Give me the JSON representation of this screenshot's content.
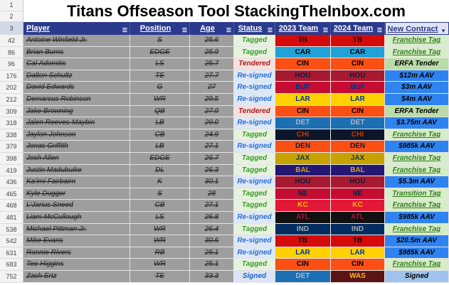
{
  "title": "Titans Offseason Tool StackingTheInbox.com",
  "title_rows": [
    "1",
    "2"
  ],
  "header_row": "3",
  "headers": {
    "player": "Player",
    "position": "Position",
    "age": "Age",
    "status": "Status",
    "team2023": "2023 Team",
    "team2024": "2024 Team",
    "contract": "New Contract"
  },
  "colors": {
    "header_bg": "#2b3a8c",
    "strike_cell_bg": "#9e9e9e",
    "tagged_text": "#3a9a2a",
    "tagged_bg": "#e7f2de",
    "resigned_text": "#2c6ed6",
    "resigned_bg": "#dde8f7",
    "tendered_text": "#a51c1c",
    "tendered_bg": "#f6e0dd",
    "signed_text": "#1f5fbf",
    "signed_bg": "#dbe5f5",
    "contract_tag_bg": "#d7ecc8",
    "contract_tag_text": "#2f7d1c",
    "contract_money_bg": "#2f83f0",
    "contract_money_text": "#000000",
    "contract_tender_bg": "#b9dca8",
    "contract_signed_bg": "#9fc3ec"
  },
  "rows": [
    {
      "num": "42",
      "player": "Antoine Winfield Jr.",
      "pos": "S",
      "age": "25.6",
      "status": "Tagged",
      "t23": "TB",
      "t24": "TB",
      "team_style": "tb",
      "contract": "Franchise Tag",
      "ctype": "tag"
    },
    {
      "num": "86",
      "player": "Brian Burns",
      "pos": "EDGE",
      "age": "25.9",
      "status": "Tagged",
      "t23": "CAR",
      "t24": "CAR",
      "team_style": "car",
      "contract": "Franchise Tag",
      "ctype": "tag"
    },
    {
      "num": "96",
      "player": "Cal Adomitis",
      "pos": "LS",
      "age": "25.7",
      "status": "Tendered",
      "t23": "CIN",
      "t24": "CIN",
      "team_style": "cin",
      "contract": "ERFA Tender",
      "ctype": "tender"
    },
    {
      "num": "176",
      "player": "Dalton Schultz",
      "pos": "TE",
      "age": "27.7",
      "status": "Re-signed",
      "t23": "HOU",
      "t24": "HOU",
      "team_style": "hou",
      "contract": "$12m AAV",
      "ctype": "money"
    },
    {
      "num": "202",
      "player": "David Edwards",
      "pos": "G",
      "age": "27",
      "status": "Re-signed",
      "t23": "BUF",
      "t24": "BUF",
      "team_style": "buf",
      "contract": "$3m AAV",
      "ctype": "money"
    },
    {
      "num": "212",
      "player": "Demarcus Robinson",
      "pos": "WR",
      "age": "29.5",
      "status": "Re-signed",
      "t23": "LAR",
      "t24": "LAR",
      "team_style": "lar",
      "contract": "$4m AAV",
      "ctype": "money"
    },
    {
      "num": "309",
      "player": "Jake Browning",
      "pos": "QB",
      "age": "27.9",
      "status": "Tendered",
      "t23": "CIN",
      "t24": "CIN",
      "team_style": "cin",
      "contract": "ERFA Tender",
      "ctype": "tender"
    },
    {
      "num": "318",
      "player": "Jalen Reeves-Maybin",
      "pos": "LB",
      "age": "29.0",
      "status": "Re-signed",
      "t23": "DET",
      "t24": "DET",
      "team_style": "det",
      "contract": "$3.75m AAV",
      "ctype": "money"
    },
    {
      "num": "338",
      "player": "Jaylon Johnson",
      "pos": "CB",
      "age": "24.9",
      "status": "Tagged",
      "t23": "CHI",
      "t24": "CHI",
      "team_style": "chi",
      "contract": "Franchise Tag",
      "ctype": "tag"
    },
    {
      "num": "379",
      "player": "Jonas Griffith",
      "pos": "LB",
      "age": "27.1",
      "status": "Re-signed",
      "t23": "DEN",
      "t24": "DEN",
      "team_style": "den",
      "contract": "$985k AAV",
      "ctype": "money"
    },
    {
      "num": "398",
      "player": "Josh Allen",
      "pos": "EDGE",
      "age": "26.7",
      "status": "Tagged",
      "t23": "JAX",
      "t24": "JAX",
      "team_style": "jax",
      "contract": "Franchise Tag",
      "ctype": "tag"
    },
    {
      "num": "419",
      "player": "Justin Madubuike",
      "pos": "DL",
      "age": "26.3",
      "status": "Tagged",
      "t23": "BAL",
      "t24": "BAL",
      "team_style": "bal",
      "contract": "Franchise Tag",
      "ctype": "tag"
    },
    {
      "num": "436",
      "player": "Ka'imi Fairbairn",
      "pos": "K",
      "age": "30.1",
      "status": "Re-signed",
      "t23": "HOU",
      "t24": "HOU",
      "team_style": "hou",
      "contract": "$5.3m AAV",
      "ctype": "money"
    },
    {
      "num": "465",
      "player": "Kyle Dugger",
      "pos": "S",
      "age": "28",
      "status": "Tagged",
      "t23": "NE",
      "t24": "NE",
      "team_style": "ne",
      "contract": "Transition Tag",
      "ctype": "tag"
    },
    {
      "num": "468",
      "player": "L'Jarius Sneed",
      "pos": "CB",
      "age": "27.1",
      "status": "Tagged",
      "t23": "KC",
      "t24": "KC",
      "team_style": "kc",
      "contract": "Franchise Tag",
      "ctype": "tag"
    },
    {
      "num": "481",
      "player": "Liam McCullough",
      "pos": "LS",
      "age": "26.8",
      "status": "Re-signed",
      "t23": "ATL",
      "t24": "ATL",
      "team_style": "atl",
      "contract": "$985k AAV",
      "ctype": "money"
    },
    {
      "num": "538",
      "player": "Michael Pittman Jr.",
      "pos": "WR",
      "age": "26.4",
      "status": "Tagged",
      "t23": "IND",
      "t24": "IND",
      "team_style": "ind",
      "contract": "Franchise Tag",
      "ctype": "tag"
    },
    {
      "num": "542",
      "player": "Mike Evans",
      "pos": "WR",
      "age": "30.6",
      "status": "Re-signed",
      "t23": "TB",
      "t24": "TB",
      "team_style": "tb",
      "contract": "$20.5m AAV",
      "ctype": "money"
    },
    {
      "num": "631",
      "player": "Ronnie Rivers",
      "pos": "RB",
      "age": "25.1",
      "status": "Re-signed",
      "t23": "LAR",
      "t24": "LAR",
      "team_style": "lar",
      "contract": "$985k AAV",
      "ctype": "money"
    },
    {
      "num": "683",
      "player": "Tee Higgins",
      "pos": "WR",
      "age": "25.1",
      "status": "Tagged",
      "t23": "CIN",
      "t24": "CIN",
      "team_style": "cin",
      "contract": "Franchise Tag",
      "ctype": "tag"
    },
    {
      "num": "752",
      "player": "Zach Ertz",
      "pos": "TE",
      "age": "33.3",
      "status": "Signed",
      "t23": "DET",
      "t24": "WAS",
      "team_style": "det_was",
      "contract": "Signed",
      "ctype": "signed"
    }
  ]
}
